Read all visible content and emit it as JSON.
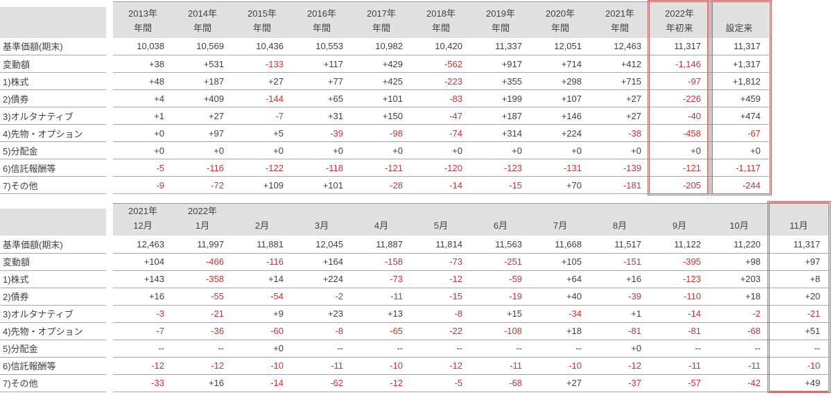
{
  "colors": {
    "text": "#404040",
    "negative": "#c43434",
    "header_bg": "#e1e1e1",
    "grid_line": "#a6a6a6",
    "header_top_line": "#999999",
    "highlight_border": "#b86060",
    "page_bg": "#ffffff"
  },
  "yearly_table": {
    "corner_label": "",
    "columns": [
      {
        "line1": "2013年",
        "line2": "年間"
      },
      {
        "line1": "2014年",
        "line2": "年間"
      },
      {
        "line1": "2015年",
        "line2": "年間"
      },
      {
        "line1": "2016年",
        "line2": "年間"
      },
      {
        "line1": "2017年",
        "line2": "年間"
      },
      {
        "line1": "2018年",
        "line2": "年間"
      },
      {
        "line1": "2019年",
        "line2": "年間"
      },
      {
        "line1": "2020年",
        "line2": "年間"
      },
      {
        "line1": "2021年",
        "line2": "年間"
      },
      {
        "line1": "2022年",
        "line2": "年初来",
        "highlighted": true
      },
      {
        "line1": "",
        "line2": "設定来",
        "highlighted": true
      }
    ],
    "rows": [
      {
        "label": "基準価額(期末)",
        "values": [
          "10,038",
          "10,569",
          "10,436",
          "10,553",
          "10,982",
          "10,420",
          "11,337",
          "12,051",
          "12,463",
          "11,317",
          "11,317"
        ]
      },
      {
        "label": "変動額",
        "values": [
          "+38",
          "+531",
          "-133",
          "+117",
          "+429",
          "-562",
          "+917",
          "+714",
          "+412",
          "-1,146",
          "+1,317"
        ]
      },
      {
        "label": "1)株式",
        "values": [
          "+48",
          "+187",
          "+27",
          "+77",
          "+425",
          "-223",
          "+355",
          "+298",
          "+715",
          "-97",
          "+1,812"
        ]
      },
      {
        "label": "2)債券",
        "values": [
          "+4",
          "+409",
          "-144",
          "+65",
          "+101",
          "-83",
          "+199",
          "+107",
          "+27",
          "-226",
          "+459"
        ]
      },
      {
        "label": "3)オルタナティブ",
        "values": [
          "+1",
          "+27",
          "-7",
          "+31",
          "+150",
          "-47",
          "+187",
          "+146",
          "+27",
          "-40",
          "+474"
        ]
      },
      {
        "label": "4)先物・オプション",
        "values": [
          "+0",
          "+97",
          "+5",
          "-39",
          "-98",
          "-74",
          "+314",
          "+224",
          "-38",
          "-458",
          "-67"
        ]
      },
      {
        "label": "5)分配金",
        "values": [
          "+0",
          "+0",
          "+0",
          "+0",
          "+0",
          "+0",
          "+0",
          "+0",
          "+0",
          "+0",
          "+0"
        ]
      },
      {
        "label": "6)信託報酬等",
        "values": [
          "-5",
          "-116",
          "-122",
          "-118",
          "-121",
          "-120",
          "-123",
          "-131",
          "-139",
          "-121",
          "-1,117"
        ]
      },
      {
        "label": "7)その他",
        "values": [
          "-9",
          "-72",
          "+109",
          "+101",
          "-28",
          "-14",
          "-15",
          "+70",
          "-181",
          "-205",
          "-244"
        ]
      }
    ]
  },
  "monthly_table": {
    "corner_label": "",
    "columns": [
      {
        "line1": "2021年",
        "line2": "12月"
      },
      {
        "line1": "2022年",
        "line2": "1月"
      },
      {
        "line1": "",
        "line2": "2月"
      },
      {
        "line1": "",
        "line2": "3月"
      },
      {
        "line1": "",
        "line2": "4月"
      },
      {
        "line1": "",
        "line2": "5月"
      },
      {
        "line1": "",
        "line2": "6月"
      },
      {
        "line1": "",
        "line2": "7月"
      },
      {
        "line1": "",
        "line2": "8月"
      },
      {
        "line1": "",
        "line2": "9月"
      },
      {
        "line1": "",
        "line2": "10月"
      },
      {
        "line1": "",
        "line2": "11月",
        "highlighted": true
      }
    ],
    "rows": [
      {
        "label": "基準価額(期末)",
        "values": [
          "12,463",
          "11,997",
          "11,881",
          "12,045",
          "11,887",
          "11,814",
          "11,563",
          "11,668",
          "11,517",
          "11,122",
          "11,220",
          "11,317"
        ]
      },
      {
        "label": "変動額",
        "values": [
          "+104",
          "-466",
          "-116",
          "+164",
          "-158",
          "-73",
          "-251",
          "+105",
          "-151",
          "-395",
          "+98",
          "+97"
        ]
      },
      {
        "label": "1)株式",
        "values": [
          "+143",
          "-358",
          "+14",
          "+224",
          "-73",
          "-12",
          "-59",
          "+64",
          "+16",
          "-123",
          "+203",
          "+8"
        ]
      },
      {
        "label": "2)債券",
        "values": [
          "+16",
          "-55",
          "-54",
          "-2",
          "-11",
          "-15",
          "-19",
          "+40",
          "-39",
          "-110",
          "+18",
          "+20"
        ]
      },
      {
        "label": "3)オルタナティブ",
        "values": [
          "-3",
          "-21",
          "+9",
          "+23",
          "+13",
          "-8",
          "+15",
          "-34",
          "+1",
          "-14",
          "-2",
          "-21"
        ]
      },
      {
        "label": "4)先物・オプション",
        "values": [
          "-7",
          "-36",
          "-60",
          "-8",
          "-65",
          "-22",
          "-108",
          "+18",
          "-81",
          "-81",
          "-68",
          "+51"
        ]
      },
      {
        "label": "5)分配金",
        "values": [
          "--",
          "--",
          "+0",
          "--",
          "--",
          "--",
          "--",
          "--",
          "+0",
          "--",
          "--",
          "--"
        ]
      },
      {
        "label": "6)信託報酬等",
        "values": [
          "-12",
          "-12",
          "-10",
          "-11",
          "-10",
          "-12",
          "-11",
          "-10",
          "-12",
          "-11",
          "-11",
          "-10"
        ]
      },
      {
        "label": "7)その他",
        "values": [
          "-33",
          "+16",
          "-14",
          "-62",
          "-12",
          "-5",
          "-68",
          "+27",
          "-37",
          "-57",
          "-42",
          "+49"
        ]
      }
    ]
  }
}
